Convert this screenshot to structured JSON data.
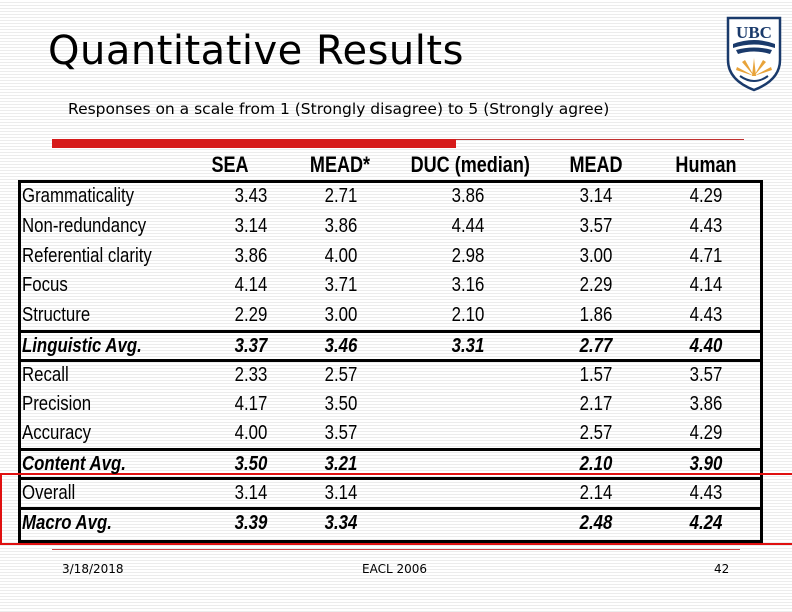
{
  "slide": {
    "title": "Quantitative Results",
    "subtitle": "Responses on a scale from 1 (Strongly disagree) to 5 (Strongly agree)",
    "logo_text": "UBC"
  },
  "table": {
    "headers": [
      "SEA",
      "MEAD*",
      "DUC (median)",
      "MEAD",
      "Human"
    ],
    "rows": [
      {
        "label": "Grammaticality",
        "values": [
          "3.43",
          "2.71",
          "3.86",
          "3.14",
          "4.29"
        ]
      },
      {
        "label": "Non-redundancy",
        "values": [
          "3.14",
          "3.86",
          "4.44",
          "3.57",
          "4.43"
        ]
      },
      {
        "label": "Referential clarity",
        "values": [
          "3.86",
          "4.00",
          "2.98",
          "3.00",
          "4.71"
        ]
      },
      {
        "label": "Focus",
        "values": [
          "4.14",
          "3.71",
          "3.16",
          "2.29",
          "4.14"
        ]
      },
      {
        "label": "Structure",
        "values": [
          "2.29",
          "3.00",
          "2.10",
          "1.86",
          "4.43"
        ]
      },
      {
        "label": "Linguistic Avg.",
        "values": [
          "3.37",
          "3.46",
          "3.31",
          "2.77",
          "4.40"
        ]
      },
      {
        "label": "Recall",
        "values": [
          "2.33",
          "2.57",
          "",
          "1.57",
          "3.57"
        ]
      },
      {
        "label": "Precision",
        "values": [
          "4.17",
          "3.50",
          "",
          "2.17",
          "3.86"
        ]
      },
      {
        "label": "Accuracy",
        "values": [
          "4.00",
          "3.57",
          "",
          "2.57",
          "4.29"
        ]
      },
      {
        "label": "Content Avg.",
        "values": [
          "3.50",
          "3.21",
          "",
          "2.10",
          "3.90"
        ]
      },
      {
        "label": "Overall",
        "values": [
          "3.14",
          "3.14",
          "",
          "2.14",
          "4.43"
        ]
      },
      {
        "label": "Macro Avg.",
        "values": [
          "3.39",
          "3.34",
          "",
          "2.48",
          "4.24"
        ]
      }
    ]
  },
  "footer": {
    "date": "3/18/2018",
    "conference": "EACL 2006",
    "page": "42"
  }
}
